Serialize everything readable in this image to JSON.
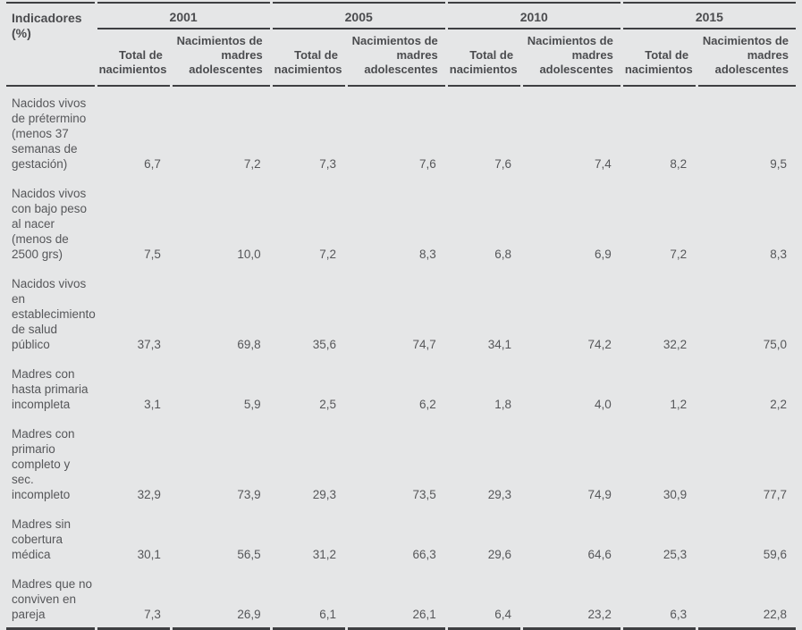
{
  "chart_data": {
    "type": "table",
    "corner_header": "Indicadores (%)",
    "year_groups": [
      {
        "year": "2001"
      },
      {
        "year": "2005"
      },
      {
        "year": "2010"
      },
      {
        "year": "2015"
      }
    ],
    "sub_total": "Total de nacimientos",
    "sub_adolescentes": "Nacimientos de madres adolescentes",
    "rows": [
      {
        "label": "Nacidos vivos de prétermino (menos 37 semanas de gestación)",
        "values": [
          "6,7",
          "7,2",
          "7,3",
          "7,6",
          "7,6",
          "7,4",
          "8,2",
          "9,5"
        ]
      },
      {
        "label": "Nacidos vivos con bajo peso al nacer (menos de 2500 grs)",
        "values": [
          "7,5",
          "10,0",
          "7,2",
          "8,3",
          "6,8",
          "6,9",
          "7,2",
          "8,3"
        ]
      },
      {
        "label": "Nacidos vivos en establecimiento de salud público",
        "values": [
          "37,3",
          "69,8",
          "35,6",
          "74,7",
          "34,1",
          "74,2",
          "32,2",
          "75,0"
        ]
      },
      {
        "label": "Madres con hasta primaria incompleta",
        "values": [
          "3,1",
          "5,9",
          "2,5",
          "6,2",
          "1,8",
          "4,0",
          "1,2",
          "2,2"
        ]
      },
      {
        "label": "Madres con primario completo y sec. incompleto",
        "values": [
          "32,9",
          "73,9",
          "29,3",
          "73,5",
          "29,3",
          "74,9",
          "30,9",
          "77,7"
        ]
      },
      {
        "label": "Madres sin cobertura médica",
        "values": [
          "30,1",
          "56,5",
          "31,2",
          "66,3",
          "29,6",
          "64,6",
          "25,3",
          "59,6"
        ]
      },
      {
        "label": "Madres que no conviven en pareja",
        "values": [
          "7,3",
          "26,9",
          "6,1",
          "26,1",
          "6,4",
          "23,2",
          "6,3",
          "22,8"
        ]
      }
    ],
    "colors": {
      "background": "#e5e6e7",
      "rule": "#3e3f42",
      "text": "#56575a"
    }
  }
}
